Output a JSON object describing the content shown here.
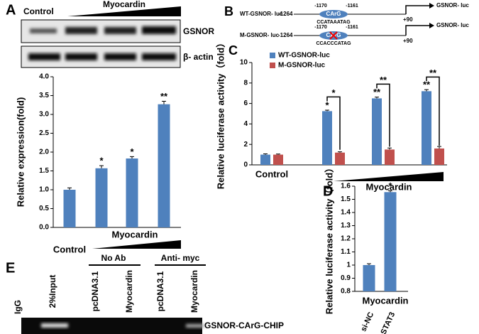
{
  "panel_labels": [
    "A",
    "B",
    "C",
    "D",
    "E"
  ],
  "blot": {
    "header": "Control",
    "treatment": "Myocardin",
    "rows": [
      "GSNOR",
      "β- actin"
    ]
  },
  "diagram": {
    "constructs": [
      {
        "name": "WT-GSNOR- luc",
        "start": "-1264",
        "site": "CArG",
        "left": "-1170",
        "right": "-1161",
        "sequence": "CCATAAATAG",
        "end": "+90",
        "reporter": "GSNOR- luc"
      },
      {
        "name": "M-GSNOR- luc",
        "start": "-1264",
        "site": "CArG",
        "left": "-1170",
        "right": "-1161",
        "sequence": "CCACCCATAG",
        "end": "+90",
        "reporter": "GSNOR- luc"
      }
    ]
  },
  "chip": {
    "lanes": [
      "IgG",
      "2%Input",
      "pcDNA3.1",
      "Myocardin",
      "pcDNA3.1",
      "Myocardin"
    ],
    "groups": [
      "No Ab",
      "Anti- myc"
    ],
    "band": "GSNOR-CArG-CHIP"
  },
  "chart_data": [
    {
      "type": "bar",
      "y_label": "Relative expression(fold)",
      "categories": [
        "Control",
        null,
        null,
        null
      ],
      "x_group_label": "Myocardin",
      "series": [
        {
          "color": "#4f81bd",
          "values": [
            1.0,
            1.57,
            1.83,
            3.27
          ],
          "errors": [
            0.05,
            0.07,
            0.05,
            0.08
          ],
          "value_annotations": [
            null,
            "*",
            "*",
            "**"
          ]
        }
      ],
      "ylim": [
        0,
        4
      ],
      "yticks": [
        {
          "value": 0,
          "label": "0.0"
        },
        0.5,
        {
          "value": 1,
          "label": "1.0"
        },
        1.5,
        {
          "value": 2,
          "label": "2.0"
        },
        2.5,
        {
          "value": 3,
          "label": "3.0"
        },
        3.5,
        {
          "value": 4,
          "label": "4.0"
        }
      ]
    },
    {
      "type": "bar",
      "y_label": "Relative luciferase activity（fold）",
      "categories": [
        "Control",
        null,
        null,
        null
      ],
      "x_group_label": "Myocardin",
      "legend": "top-left",
      "series": [
        {
          "name": "WT-GSNOR-luc",
          "color": "#4f81bd",
          "values": [
            1.0,
            5.25,
            6.5,
            7.2
          ],
          "errors": [
            0.08,
            0.1,
            0.12,
            0.15
          ],
          "value_annotations": [
            null,
            "*",
            "**",
            "**"
          ]
        },
        {
          "name": "M-GSNOR-luc",
          "color": "#c0504d",
          "values": [
            1.0,
            1.2,
            1.5,
            1.6
          ],
          "errors": [
            0.06,
            0.08,
            0.15,
            0.2
          ]
        }
      ],
      "comparison_annotations": [
        null,
        "*",
        "**",
        "**"
      ],
      "ylim": [
        0,
        10
      ],
      "yticks": [
        0,
        2,
        4,
        6,
        8,
        10
      ]
    },
    {
      "type": "bar",
      "y_label": "Relative luciferase activity（fold）",
      "categories": [
        "si-NC",
        "si-STAT3"
      ],
      "x_group_label": "Myocardin",
      "series": [
        {
          "color": "#4f81bd",
          "values": [
            1.0,
            1.555
          ],
          "errors": [
            0.01,
            0.01
          ],
          "value_annotations": [
            null,
            "*"
          ]
        }
      ],
      "ylim": [
        0.8,
        1.6
      ],
      "yticks": [
        0.8,
        0.9,
        1,
        1.1,
        1.2,
        1.3,
        1.4,
        1.5,
        1.6
      ]
    }
  ]
}
